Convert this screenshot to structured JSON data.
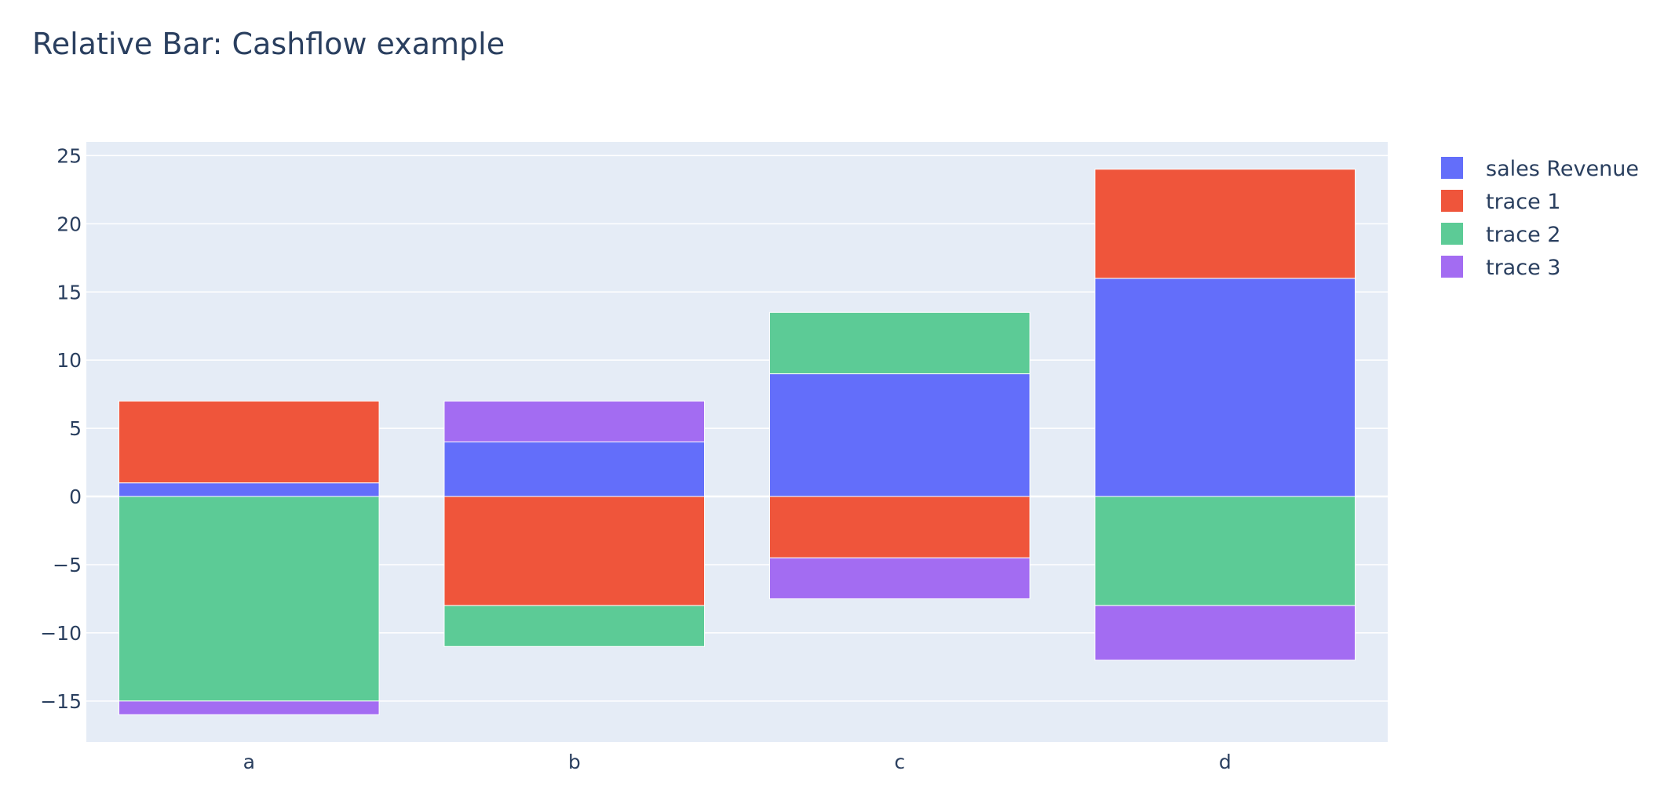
{
  "chart_data": {
    "type": "bar",
    "barmode": "relative",
    "title": "Relative Bar: Cashflow example",
    "xlabel": "",
    "ylabel": "",
    "categories": [
      "a",
      "b",
      "c",
      "d"
    ],
    "ylim": [
      -18,
      26
    ],
    "yticks": [
      25,
      20,
      15,
      10,
      5,
      0,
      -5,
      -10,
      -15
    ],
    "ytick_labels": [
      "25",
      "20",
      "15",
      "10",
      "5",
      "0",
      "−5",
      "−10",
      "−15"
    ],
    "grid": true,
    "legend_position": "top-right",
    "series": [
      {
        "name": "sales Revenue",
        "color": "#636efa",
        "values": [
          1,
          4,
          9,
          16
        ]
      },
      {
        "name": "trace 1",
        "color": "#EF553B",
        "values": [
          6,
          -8,
          -4.5,
          8
        ]
      },
      {
        "name": "trace 2",
        "color": "#5ccb96",
        "values": [
          -15,
          -3,
          4.5,
          -8
        ]
      },
      {
        "name": "trace 3",
        "color": "#a36cf2",
        "values": [
          -1,
          3,
          -3,
          -4
        ]
      }
    ]
  },
  "colors": {
    "plot_background": "#e5ecf6",
    "gridline": "#ffffff",
    "text": "#2a3f5f"
  }
}
